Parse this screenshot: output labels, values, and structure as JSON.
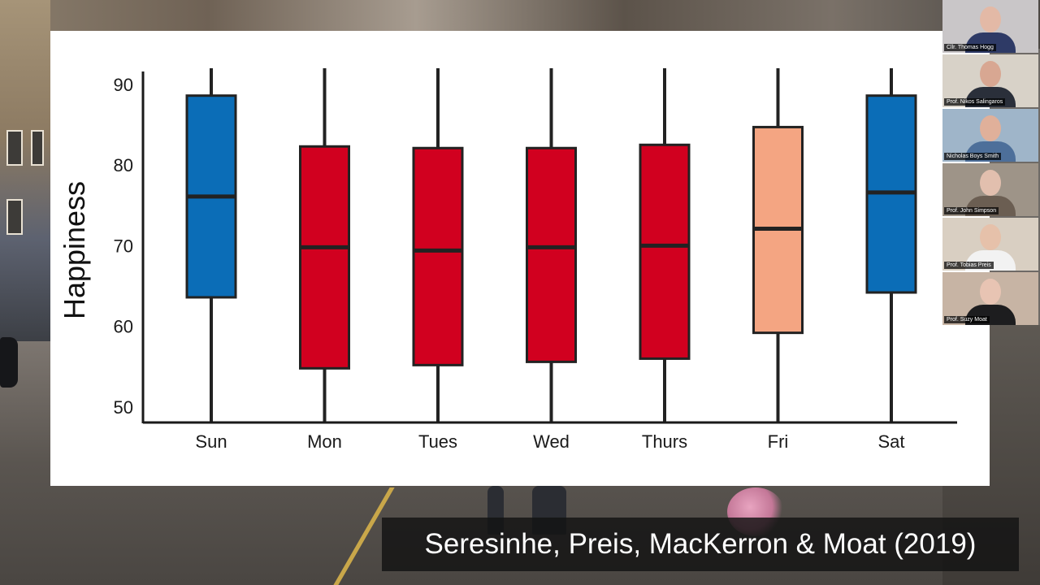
{
  "chart_data": {
    "type": "box",
    "title": "",
    "xlabel": "",
    "ylabel": "Happiness",
    "ylim": [
      48,
      92
    ],
    "yticks": [
      50,
      60,
      70,
      80,
      90
    ],
    "grid": false,
    "legend": "none",
    "categories": [
      "Sun",
      "Mon",
      "Tues",
      "Wed",
      "Thurs",
      "Fri",
      "Sat"
    ],
    "boxes": [
      {
        "label": "Sun",
        "whisker_low": 48,
        "q1": 63.6,
        "median": 76.1,
        "q3": 88.6,
        "whisker_high": 92,
        "color": "#0b6db7"
      },
      {
        "label": "Mon",
        "whisker_low": 48,
        "q1": 54.8,
        "median": 69.8,
        "q3": 82.3,
        "whisker_high": 92,
        "color": "#d1001f"
      },
      {
        "label": "Tues",
        "whisker_low": 48,
        "q1": 55.2,
        "median": 69.4,
        "q3": 82.1,
        "whisker_high": 92,
        "color": "#d1001f"
      },
      {
        "label": "Wed",
        "whisker_low": 48,
        "q1": 55.6,
        "median": 69.8,
        "q3": 82.1,
        "whisker_high": 92,
        "color": "#d1001f"
      },
      {
        "label": "Thurs",
        "whisker_low": 48,
        "q1": 56.0,
        "median": 70.0,
        "q3": 82.5,
        "whisker_high": 92,
        "color": "#d1001f"
      },
      {
        "label": "Fri",
        "whisker_low": 48,
        "q1": 59.2,
        "median": 72.1,
        "q3": 84.7,
        "whisker_high": 92,
        "color": "#f4a582"
      },
      {
        "label": "Sat",
        "whisker_low": 48,
        "q1": 64.2,
        "median": 76.6,
        "q3": 88.6,
        "whisker_high": 92,
        "color": "#0b6db7"
      }
    ]
  },
  "participants": [
    {
      "name": "Cllr. Thomas Hogg",
      "bg": "#c9c6c8",
      "shirt": "#2e3a66",
      "skin": "#e3b9a6"
    },
    {
      "name": "Prof. Nikos Salingaros",
      "bg": "#d8d2c8",
      "shirt": "#2a2f3a",
      "skin": "#d8a792"
    },
    {
      "name": "Nicholas Boys Smith",
      "bg": "#9fb5c9",
      "shirt": "#4d6f9a",
      "skin": "#e0b09a"
    },
    {
      "name": "Prof. John Simpson",
      "bg": "#9e9488",
      "shirt": "#6b5e52",
      "skin": "#e2bfae"
    },
    {
      "name": "Prof. Tobias Preis",
      "bg": "#d9cfc2",
      "shirt": "#f2f2f2",
      "skin": "#e6c1aa"
    },
    {
      "name": "Prof. Suzy Moat",
      "bg": "#c7b4a4",
      "shirt": "#1d1d1f",
      "skin": "#e8c4b3"
    }
  ],
  "caption": "Seresinhe, Preis, MacKerron & Moat (2019)"
}
